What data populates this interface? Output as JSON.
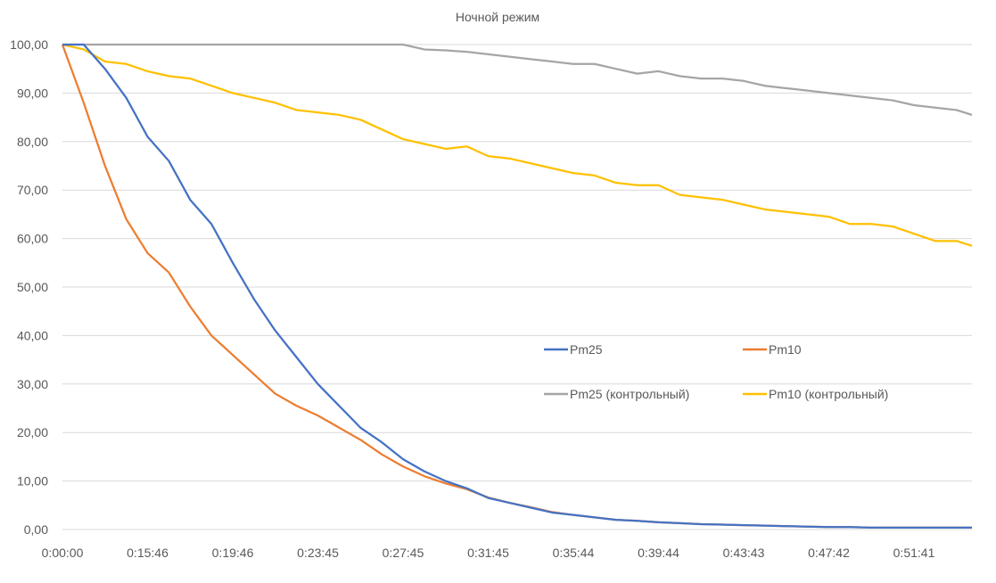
{
  "chart_data": {
    "type": "line",
    "title": "Ночной режим",
    "xlabel": "",
    "ylabel": "",
    "ylim": [
      0,
      100
    ],
    "yticks": [
      "0,00",
      "10,00",
      "20,00",
      "30,00",
      "40,00",
      "50,00",
      "60,00",
      "70,00",
      "80,00",
      "90,00",
      "100,00"
    ],
    "xtick_labels": [
      "0:00:00",
      "0:15:46",
      "0:19:46",
      "0:23:45",
      "0:27:45",
      "0:31:45",
      "0:35:44",
      "0:39:44",
      "0:43:43",
      "0:47:42",
      "0:51:41"
    ],
    "samples_per_tick_interval": 4,
    "grid": true,
    "legend_position": "inside-center-right",
    "series": [
      {
        "name": "Pm25",
        "color": "#4472C4",
        "values": [
          100,
          100,
          95,
          89,
          81,
          76,
          68,
          63,
          55,
          47.5,
          41,
          35.5,
          30,
          25.5,
          21,
          18,
          14.5,
          12,
          10,
          8.5,
          6.5,
          5.5,
          4.5,
          3.5,
          3,
          2.5,
          2,
          1.8,
          1.5,
          1.3,
          1.1,
          1,
          0.9,
          0.8,
          0.7,
          0.6,
          0.5,
          0.5,
          0.4,
          0.4,
          0.4,
          0.4,
          0.4,
          0.4
        ]
      },
      {
        "name": "Pm10",
        "color": "#ED7D31",
        "values": [
          100,
          88,
          75,
          64,
          57,
          53,
          46,
          40,
          36,
          32,
          28,
          25.5,
          23.5,
          21,
          18.5,
          15.5,
          13,
          11,
          9.5,
          8.3,
          6.6,
          5.5,
          4.6,
          3.6,
          3,
          2.5,
          2,
          1.8,
          1.5,
          1.3,
          1.1,
          1,
          0.9,
          0.8,
          0.7,
          0.6,
          0.5,
          0.5,
          0.4,
          0.4,
          0.4,
          0.4,
          0.4,
          0.4
        ]
      },
      {
        "name": "Pm25 (контрольный)",
        "color": "#A5A5A5",
        "values": [
          100,
          100,
          100,
          100,
          100,
          100,
          100,
          100,
          100,
          100,
          100,
          100,
          100,
          100,
          100,
          100,
          100,
          99,
          98.8,
          98.5,
          98,
          97.5,
          97,
          96.5,
          96,
          96,
          95,
          94,
          94.5,
          93.5,
          93,
          93,
          92.5,
          91.5,
          91,
          90.5,
          90,
          89.5,
          89,
          88.5,
          87.5,
          87,
          86.5,
          85.5
        ]
      },
      {
        "name": "Pm10  (контрольный)",
        "color": "#FFC000",
        "values": [
          100,
          99,
          96.5,
          96,
          94.5,
          93.5,
          93,
          91.5,
          90,
          89,
          88,
          86.5,
          86,
          85.5,
          84.5,
          82.5,
          80.5,
          79.5,
          78.5,
          79,
          77,
          76.5,
          75.5,
          74.5,
          73.5,
          73,
          71.5,
          71,
          71,
          69,
          68.5,
          68,
          67,
          66,
          65.5,
          65,
          64.5,
          63,
          63,
          62.5,
          61,
          59.5,
          59.5,
          58.5
        ]
      }
    ]
  }
}
